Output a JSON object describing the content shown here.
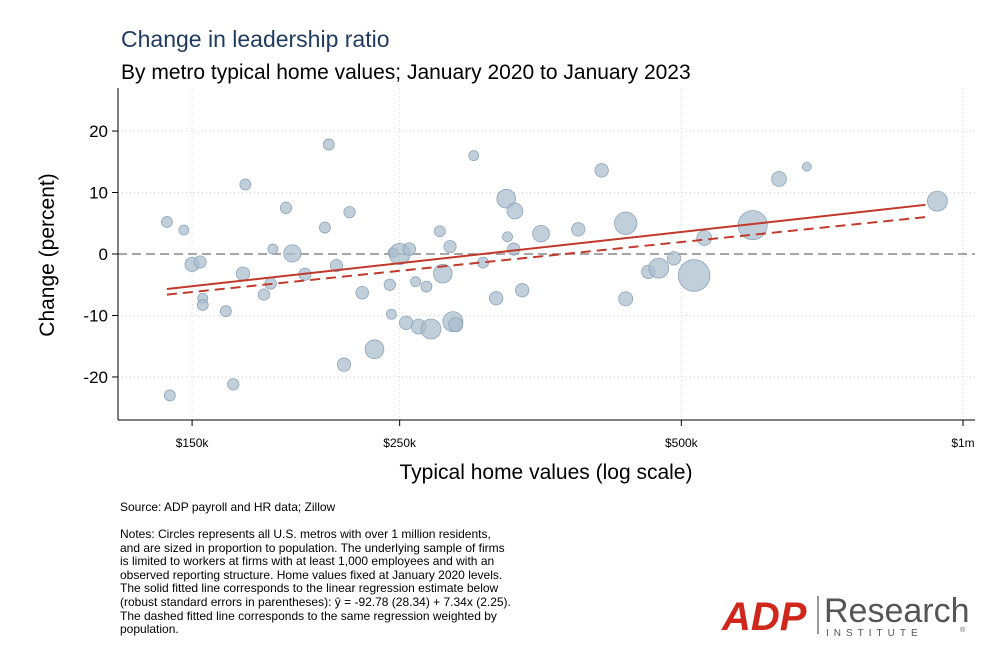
{
  "chart_data": {
    "type": "scatter",
    "title": "Change in leadership ratio",
    "subtitle": "By metro typical home values; January 2020 to January 2023",
    "xlabel": "Typical home values (log scale)",
    "ylabel": "Change (percent)",
    "x_scale": "log",
    "x_ticks": [
      150000,
      250000,
      500000,
      1000000
    ],
    "x_tick_labels": [
      "$150k",
      "$250k",
      "$500k",
      "$1m"
    ],
    "y_ticks": [
      -20,
      -10,
      0,
      10,
      20
    ],
    "y_tick_labels": [
      "-20",
      "-10",
      "0",
      "10",
      "20"
    ],
    "xlim": [
      125000,
      1030000
    ],
    "ylim": [
      -27,
      27
    ],
    "grid": true,
    "reference_line_y": 0,
    "colors": {
      "points": "#a9bccd",
      "fit": "#c0392b",
      "zero_line": "#888888"
    },
    "points": [
      {
        "x": 141000,
        "y": 5.2,
        "size": 1.2
      },
      {
        "x": 142000,
        "y": -23.0,
        "size": 1.2
      },
      {
        "x": 147000,
        "y": 3.9,
        "size": 1.0
      },
      {
        "x": 150000,
        "y": -1.7,
        "size": 2.0
      },
      {
        "x": 153000,
        "y": -1.3,
        "size": 1.5
      },
      {
        "x": 154000,
        "y": -7.2,
        "size": 1.0
      },
      {
        "x": 154000,
        "y": -8.3,
        "size": 1.2
      },
      {
        "x": 163000,
        "y": -9.3,
        "size": 1.2
      },
      {
        "x": 166000,
        "y": -21.2,
        "size": 1.3
      },
      {
        "x": 171000,
        "y": 11.3,
        "size": 1.2
      },
      {
        "x": 170000,
        "y": -3.2,
        "size": 1.8
      },
      {
        "x": 179000,
        "y": -6.6,
        "size": 1.3
      },
      {
        "x": 182000,
        "y": -4.8,
        "size": 1.3
      },
      {
        "x": 183000,
        "y": 0.8,
        "size": 1.0
      },
      {
        "x": 189000,
        "y": 7.5,
        "size": 1.3
      },
      {
        "x": 192000,
        "y": 0.1,
        "size": 3.0
      },
      {
        "x": 198000,
        "y": -3.3,
        "size": 1.5
      },
      {
        "x": 208000,
        "y": 4.3,
        "size": 1.2
      },
      {
        "x": 210000,
        "y": 17.8,
        "size": 1.2
      },
      {
        "x": 214000,
        "y": -1.9,
        "size": 1.5
      },
      {
        "x": 218000,
        "y": -18.0,
        "size": 1.8
      },
      {
        "x": 221000,
        "y": 6.8,
        "size": 1.3
      },
      {
        "x": 228000,
        "y": -6.3,
        "size": 1.6
      },
      {
        "x": 235000,
        "y": -15.5,
        "size": 3.5
      },
      {
        "x": 244000,
        "y": -5.0,
        "size": 1.3
      },
      {
        "x": 245000,
        "y": -9.8,
        "size": 1.0
      },
      {
        "x": 246000,
        "y": 0.2,
        "size": 1.0
      },
      {
        "x": 250000,
        "y": 0.0,
        "size": 4.5
      },
      {
        "x": 254000,
        "y": -11.2,
        "size": 1.8
      },
      {
        "x": 256000,
        "y": 0.8,
        "size": 1.6
      },
      {
        "x": 260000,
        "y": -4.5,
        "size": 1.0
      },
      {
        "x": 262000,
        "y": -11.8,
        "size": 2.2
      },
      {
        "x": 267000,
        "y": -5.3,
        "size": 1.2
      },
      {
        "x": 270000,
        "y": -12.2,
        "size": 4.0
      },
      {
        "x": 276000,
        "y": 3.7,
        "size": 1.2
      },
      {
        "x": 278000,
        "y": -3.2,
        "size": 3.5
      },
      {
        "x": 283000,
        "y": 1.2,
        "size": 1.5
      },
      {
        "x": 285000,
        "y": -11.0,
        "size": 4.0
      },
      {
        "x": 287000,
        "y": -11.5,
        "size": 2.0
      },
      {
        "x": 300000,
        "y": 16.0,
        "size": 1.0
      },
      {
        "x": 307000,
        "y": -1.4,
        "size": 1.2
      },
      {
        "x": 317000,
        "y": -7.2,
        "size": 1.8
      },
      {
        "x": 325000,
        "y": 9.0,
        "size": 3.5
      },
      {
        "x": 326000,
        "y": 2.8,
        "size": 1.0
      },
      {
        "x": 331000,
        "y": 0.8,
        "size": 1.5
      },
      {
        "x": 332000,
        "y": 7.0,
        "size": 2.5
      },
      {
        "x": 338000,
        "y": -5.9,
        "size": 1.8
      },
      {
        "x": 354000,
        "y": 3.3,
        "size": 2.8
      },
      {
        "x": 388000,
        "y": 4.0,
        "size": 1.8
      },
      {
        "x": 411000,
        "y": 13.6,
        "size": 1.8
      },
      {
        "x": 436000,
        "y": 5.0,
        "size": 5.0
      },
      {
        "x": 436000,
        "y": -7.3,
        "size": 2.0
      },
      {
        "x": 461000,
        "y": -2.9,
        "size": 1.8
      },
      {
        "x": 473000,
        "y": -2.3,
        "size": 4.0
      },
      {
        "x": 491000,
        "y": -0.7,
        "size": 1.8
      },
      {
        "x": 516000,
        "y": -3.5,
        "size": 10.0
      },
      {
        "x": 529000,
        "y": 2.6,
        "size": 2.2
      },
      {
        "x": 596000,
        "y": 4.7,
        "size": 8.5
      },
      {
        "x": 636000,
        "y": 12.2,
        "size": 2.2
      },
      {
        "x": 681000,
        "y": 14.2,
        "size": 0.8
      },
      {
        "x": 939000,
        "y": 8.6,
        "size": 4.0
      }
    ],
    "fit_solid": {
      "x": [
        141000,
        912000
      ],
      "y": [
        -5.7,
        8.0
      ]
    },
    "fit_dashed": {
      "x": [
        141000,
        912000
      ],
      "y": [
        -6.6,
        6.0
      ]
    }
  },
  "source": "Source: ADP payroll and HR data; Zillow",
  "notes": "Notes: Circles represents all U.S. metros with over 1 million residents,\nand are sized in proportion to population. The underlying sample of firms\nis limited to workers at firms with at least 1,000 employees and with an\nobserved reporting structure. Home values fixed at January 2020 levels.\nThe solid fitted line corresponds to the linear regression estimate below\n(robust standard errors in parentheses): ŷ = -92.78 (28.34) + 7.34x (2.25).\nThe dashed fitted line corresponds to the same regression weighted by\npopulation.",
  "logo": {
    "brand": "ADP",
    "name": "Research",
    "tagline": "INSTITUTE",
    "registered": "®"
  }
}
